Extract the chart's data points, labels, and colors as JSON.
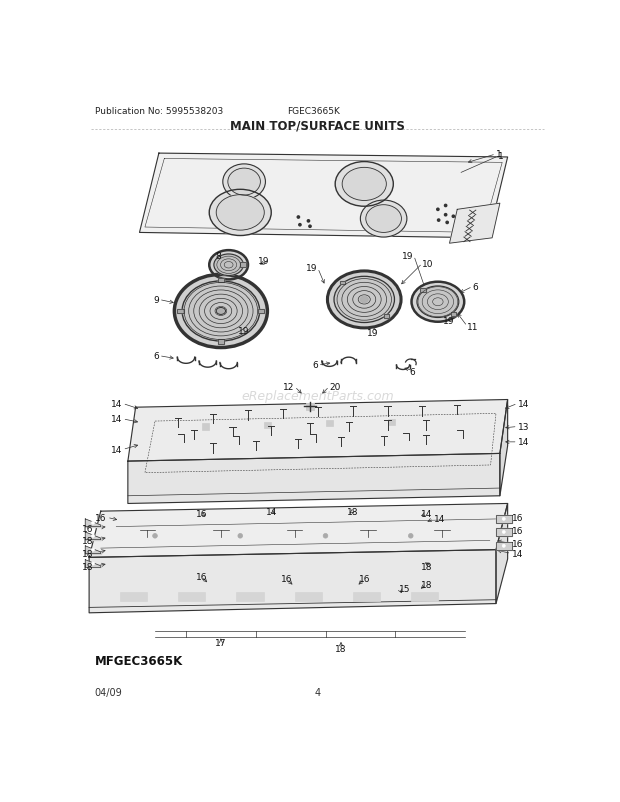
{
  "pub_no": "Publication No: 5995538203",
  "model": "FGEC3665K",
  "title": "MAIN TOP/SURFACE UNITS",
  "bottom_left": "MFGEC3665K",
  "bottom_date": "04/09",
  "bottom_page": "4",
  "watermark": "eReplacementParts.com",
  "bg_color": "#ffffff",
  "text_color": "#222222",
  "line_color": "#333333",
  "title_fontsize": 8.5,
  "header_fontsize": 6.5,
  "footer_fontsize": 7,
  "label_fontsize": 6.5,
  "watermark_fontsize": 9
}
